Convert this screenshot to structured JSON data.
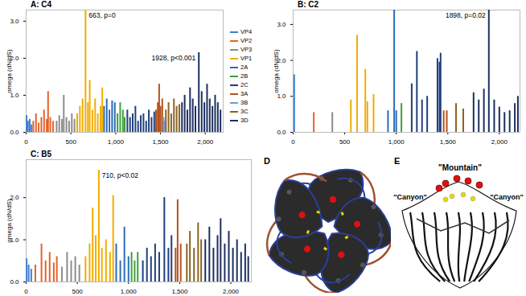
{
  "chart_data": [
    {
      "type": "bar",
      "title": "A: C4",
      "y_label": "omega (dN/dS)",
      "xlim": [
        0,
        2200
      ],
      "xticks": [
        0,
        500,
        1000,
        1500,
        2000
      ],
      "ylim": [
        0,
        3.3
      ],
      "yticks": [
        0,
        1,
        2,
        3
      ],
      "legend": "right",
      "annotations": [
        {
          "text": "663, p=0",
          "x": 663,
          "y": 3.3
        },
        {
          "text": "1928, p<0.001",
          "x": 1928,
          "y": 2.15
        }
      ],
      "series": [
        {
          "name": "VP4",
          "color": "#3f7fcf",
          "x": [
            5,
            20,
            40,
            60
          ],
          "values": [
            0.45,
            0.3,
            0.35,
            0.2
          ]
        },
        {
          "name": "VP2",
          "color": "#e4622b",
          "x": [
            80,
            110,
            140,
            170,
            200,
            230,
            245,
            270,
            300
          ],
          "values": [
            0.3,
            0.5,
            0.25,
            0.4,
            0.6,
            0.35,
            1.1,
            0.4,
            0.3
          ]
        },
        {
          "name": "VP3",
          "color": "#8c8c8c",
          "x": [
            340,
            370,
            400,
            420,
            450,
            480,
            510,
            540
          ],
          "values": [
            0.3,
            0.45,
            0.35,
            1.0,
            0.4,
            0.3,
            0.5,
            0.35
          ]
        },
        {
          "name": "VP1",
          "color": "#f2ac00",
          "x": [
            570,
            600,
            630,
            663,
            690,
            710,
            740,
            770,
            800,
            830,
            850
          ],
          "values": [
            0.5,
            0.7,
            0.9,
            3.3,
            0.8,
            1.4,
            0.6,
            0.9,
            0.5,
            0.7,
            1.2
          ]
        },
        {
          "name": "2A",
          "color": "#2b6cb8",
          "x": [
            870,
            900,
            930,
            960,
            990
          ],
          "values": [
            0.7,
            0.9,
            0.6,
            0.85,
            0.8
          ]
        },
        {
          "name": "2B",
          "color": "#3f9f3a",
          "x": [
            1020,
            1050,
            1080,
            1100
          ],
          "values": [
            0.5,
            0.8,
            0.6,
            0.4
          ]
        },
        {
          "name": "2C",
          "color": "#1f3f7c",
          "x": [
            1130,
            1160,
            1190,
            1220,
            1250,
            1280,
            1310,
            1340,
            1370,
            1400,
            1430
          ],
          "values": [
            0.6,
            0.4,
            0.5,
            0.7,
            0.3,
            0.45,
            0.5,
            0.3,
            0.6,
            0.4,
            0.55
          ]
        },
        {
          "name": "3A",
          "color": "#b4511d",
          "x": [
            1450,
            1470,
            1485,
            1500,
            1520
          ],
          "values": [
            0.6,
            0.8,
            1.3,
            0.7,
            0.9
          ]
        },
        {
          "name": "3B",
          "color": "#6b9fdc",
          "x": [
            1535,
            1545
          ],
          "values": [
            0.4,
            0.3
          ]
        },
        {
          "name": "3C",
          "color": "#8a6321",
          "x": [
            1560,
            1590,
            1620,
            1650,
            1680,
            1710
          ],
          "values": [
            0.6,
            0.8,
            0.5,
            0.9,
            0.7,
            0.75
          ]
        },
        {
          "name": "3D",
          "color": "#1c2f5f",
          "x": [
            1740,
            1770,
            1800,
            1830,
            1860,
            1890,
            1928,
            1960,
            1990,
            2020,
            2050,
            2080,
            2110,
            2140,
            2170
          ],
          "values": [
            0.8,
            1.0,
            0.6,
            1.2,
            0.9,
            0.7,
            2.15,
            1.1,
            0.8,
            1.3,
            0.9,
            0.7,
            1.0,
            0.8,
            0.6
          ]
        }
      ]
    },
    {
      "type": "bar",
      "title": "B: C2",
      "y_label": "omega (dN/dS)",
      "xlim": [
        0,
        2200
      ],
      "xticks": [
        0,
        500,
        1000,
        1500,
        2000
      ],
      "ylim": [
        0,
        3.4
      ],
      "yticks": [
        0,
        1,
        2,
        3
      ],
      "annotations": [
        {
          "text": "1898, p=0.02",
          "x": 1898,
          "y": 3.4
        }
      ],
      "series": [
        {
          "color": "#3f7fcf",
          "x": [
            10
          ],
          "values": [
            1.6
          ]
        },
        {
          "color": "#e4622b",
          "x": [
            200
          ],
          "values": [
            0.55
          ]
        },
        {
          "color": "#8c8c8c",
          "x": [
            380
          ],
          "values": [
            0.55
          ]
        },
        {
          "color": "#f2ac00",
          "x": [
            560,
            620,
            700,
            720,
            780
          ],
          "values": [
            0.9,
            2.7,
            1.75,
            0.85,
            1.05
          ]
        },
        {
          "color": "#2b6cb8",
          "x": [
            920,
            980,
            1000
          ],
          "values": [
            0.6,
            3.4,
            0.6
          ]
        },
        {
          "color": "#3f9f3a",
          "x": [
            1050
          ],
          "values": [
            0.8
          ]
        },
        {
          "color": "#1f3f7c",
          "x": [
            1150,
            1200,
            1250,
            1300,
            1400,
            1420,
            1430
          ],
          "values": [
            1.35,
            2.25,
            0.9,
            1.0,
            2.05,
            1.95,
            2.2
          ]
        },
        {
          "color": "#b4511d",
          "x": [
            1460,
            1490
          ],
          "values": [
            0.6,
            0.6
          ]
        },
        {
          "color": "#8a6321",
          "x": [
            1580,
            1650
          ],
          "values": [
            0.8,
            0.65
          ]
        },
        {
          "color": "#1c2f5f",
          "x": [
            1750,
            1800,
            1850,
            1898,
            1950,
            2000,
            2050,
            2100,
            2150,
            2180
          ],
          "values": [
            1.1,
            0.9,
            1.2,
            3.4,
            0.9,
            0.7,
            0.55,
            0.6,
            0.8,
            1.0
          ]
        }
      ]
    },
    {
      "type": "bar",
      "title": "C: B5",
      "y_label": "omega (dN/dS)",
      "xlim": [
        0,
        2200
      ],
      "xticks": [
        0,
        500,
        1000,
        1500,
        2000
      ],
      "ylim": [
        0,
        2.9
      ],
      "yticks": [
        0,
        1,
        2
      ],
      "annotations": [
        {
          "text": "710, p<0.02",
          "x": 710,
          "y": 2.65
        }
      ],
      "series": [
        {
          "color": "#3f7fcf",
          "x": [
            5,
            25,
            50
          ],
          "values": [
            0.55,
            0.4,
            0.3
          ]
        },
        {
          "color": "#e4622b",
          "x": [
            90,
            150,
            190,
            230,
            270,
            300
          ],
          "values": [
            0.4,
            0.9,
            0.5,
            0.7,
            0.45,
            0.6
          ]
        },
        {
          "color": "#8c8c8c",
          "x": [
            350,
            400,
            440,
            480,
            520
          ],
          "values": [
            0.35,
            0.7,
            0.5,
            0.6,
            0.4
          ]
        },
        {
          "color": "#f2ac00",
          "x": [
            580,
            620,
            650,
            680,
            710,
            740,
            780,
            820,
            850
          ],
          "values": [
            0.6,
            0.9,
            1.75,
            1.1,
            2.65,
            0.8,
            1.0,
            0.7,
            2.05
          ]
        },
        {
          "color": "#2b6cb8",
          "x": [
            880,
            920,
            960,
            1000
          ],
          "values": [
            0.9,
            0.5,
            1.3,
            0.6
          ]
        },
        {
          "color": "#3f9f3a",
          "x": [
            1030,
            1060,
            1090
          ],
          "values": [
            0.7,
            0.5,
            0.7
          ]
        },
        {
          "color": "#1f3f7c",
          "x": [
            1140,
            1180,
            1220,
            1260,
            1300,
            1350,
            1390,
            1420
          ],
          "values": [
            0.5,
            0.8,
            0.6,
            0.9,
            0.7,
            2.0,
            0.8,
            1.1
          ]
        },
        {
          "color": "#b4511d",
          "x": [
            1460,
            1480,
            1510
          ],
          "values": [
            0.8,
            1.95,
            0.9
          ]
        },
        {
          "color": "#8a6321",
          "x": [
            1570,
            1600,
            1640,
            1680,
            1710
          ],
          "values": [
            0.9,
            1.2,
            0.8,
            1.4,
            1.0
          ]
        },
        {
          "color": "#1c2f5f",
          "x": [
            1750,
            1790,
            1830,
            1870,
            1900,
            1940,
            1980,
            2020,
            2060,
            2100,
            2140,
            2170
          ],
          "values": [
            1.0,
            1.3,
            0.8,
            1.1,
            1.5,
            0.9,
            1.2,
            0.8,
            1.0,
            0.7,
            0.9,
            0.6
          ]
        }
      ]
    }
  ],
  "diagram_D": {
    "label": "D"
  },
  "diagram_E": {
    "label": "E",
    "top_label": "\"Mountain\"",
    "side_labels": [
      "\"Canyon\"",
      "\"Canyon\""
    ]
  }
}
